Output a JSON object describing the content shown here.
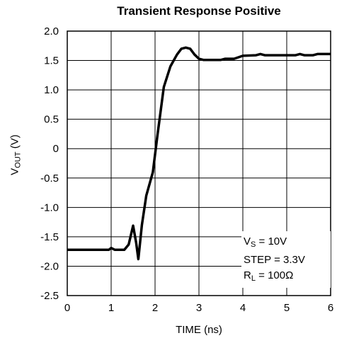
{
  "chart_data": {
    "type": "line",
    "title": "Transient Response Positive",
    "xlabel": "TIME (ns)",
    "ylabel": {
      "main": "V",
      "sub": "OUT",
      "unit": " (V)"
    },
    "xlim": [
      0,
      6
    ],
    "ylim": [
      -2.5,
      2.0
    ],
    "x_ticks": [
      "0",
      "1",
      "2",
      "3",
      "4",
      "5",
      "6"
    ],
    "y_ticks": [
      "2.0",
      "1.5",
      "1.0",
      "0.5",
      "0",
      "-0.5",
      "-1.0",
      "-1.5",
      "-2.0",
      "-2.5"
    ],
    "grid": true,
    "series": [
      {
        "color": "#000000",
        "points": [
          [
            0.0,
            -1.72
          ],
          [
            0.95,
            -1.72
          ],
          [
            1.0,
            -1.69
          ],
          [
            1.08,
            -1.72
          ],
          [
            1.3,
            -1.72
          ],
          [
            1.4,
            -1.63
          ],
          [
            1.5,
            -1.31
          ],
          [
            1.57,
            -1.6
          ],
          [
            1.62,
            -1.88
          ],
          [
            1.7,
            -1.3
          ],
          [
            1.8,
            -0.8
          ],
          [
            1.95,
            -0.4
          ],
          [
            2.05,
            0.2
          ],
          [
            2.2,
            1.05
          ],
          [
            2.35,
            1.4
          ],
          [
            2.5,
            1.6
          ],
          [
            2.6,
            1.7
          ],
          [
            2.7,
            1.72
          ],
          [
            2.8,
            1.7
          ],
          [
            2.9,
            1.6
          ],
          [
            3.0,
            1.53
          ],
          [
            3.1,
            1.51
          ],
          [
            3.5,
            1.51
          ],
          [
            3.6,
            1.53
          ],
          [
            3.8,
            1.53
          ],
          [
            4.0,
            1.58
          ],
          [
            4.3,
            1.59
          ],
          [
            4.4,
            1.61
          ],
          [
            4.5,
            1.59
          ],
          [
            5.2,
            1.59
          ],
          [
            5.3,
            1.61
          ],
          [
            5.4,
            1.59
          ],
          [
            5.6,
            1.59
          ],
          [
            5.7,
            1.61
          ],
          [
            6.0,
            1.61
          ]
        ]
      }
    ],
    "annotations": {
      "vs": {
        "main": "V",
        "sub": "S",
        "value": " = 10V"
      },
      "step": "STEP = 3.3V",
      "rl": {
        "main": "R",
        "sub": "L",
        "value": " = 100Ω"
      }
    }
  }
}
